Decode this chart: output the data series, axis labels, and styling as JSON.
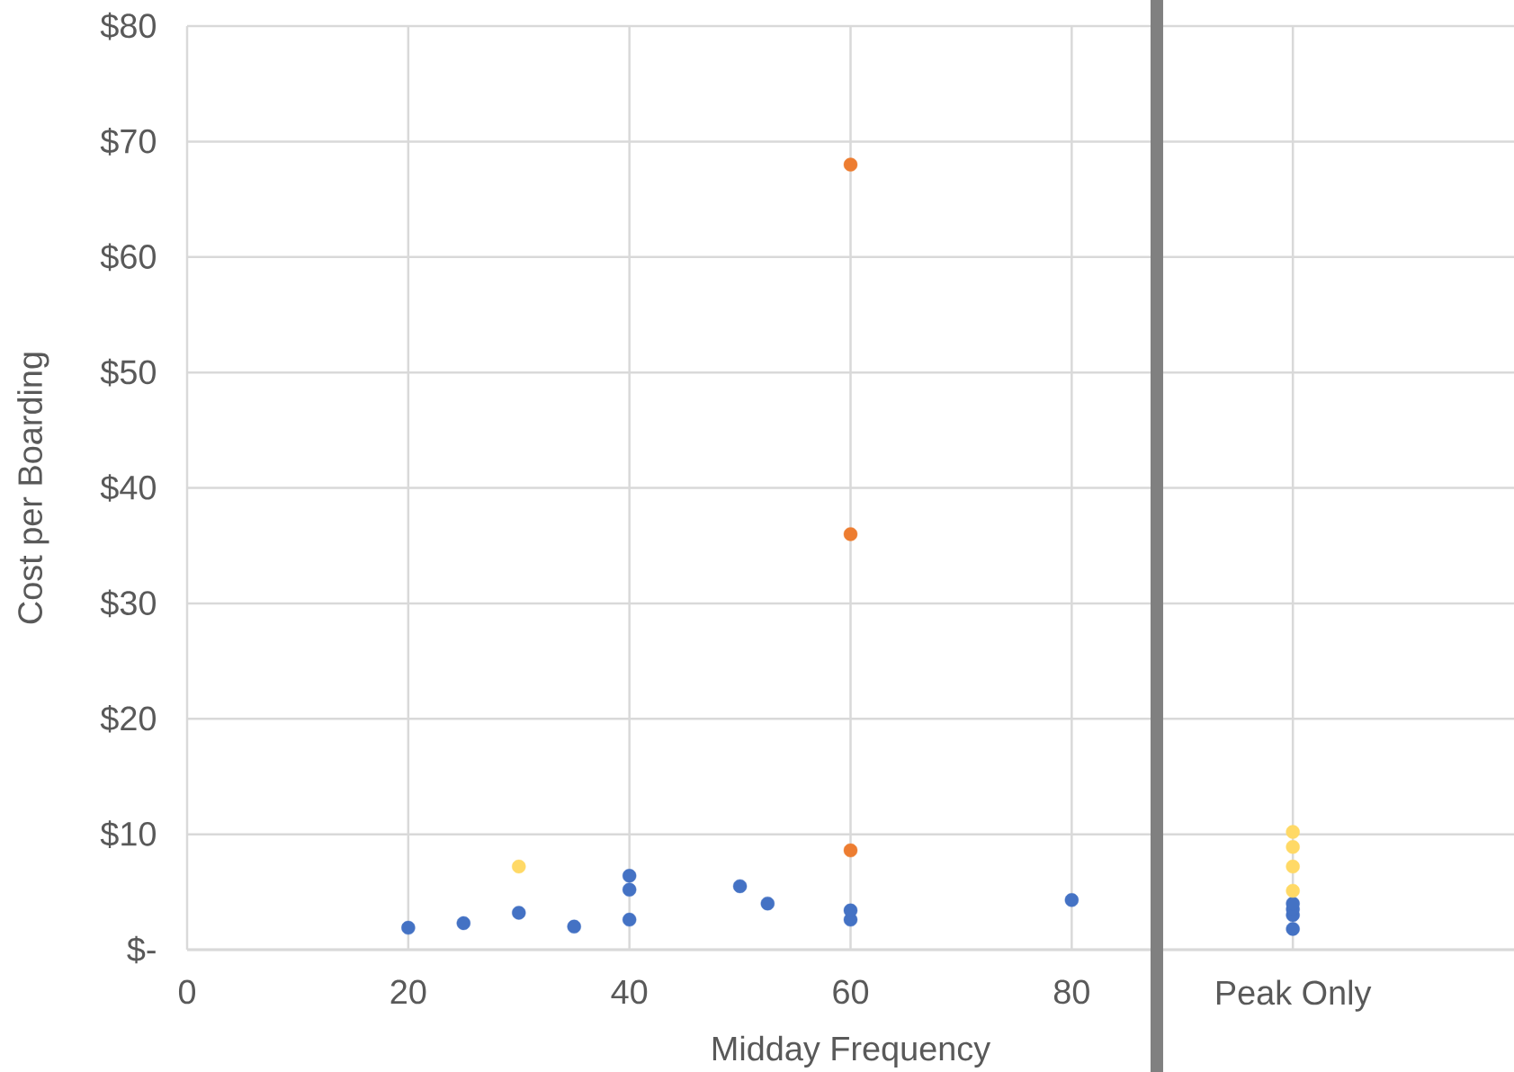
{
  "chart_data": {
    "type": "scatter",
    "xlabel": "Midday Frequency",
    "ylabel": "Cost per Boarding",
    "xlim": [
      0,
      120
    ],
    "ylim": [
      0,
      80
    ],
    "xticks": [
      0,
      20,
      40,
      60,
      80,
      {
        "value": 100,
        "label": "Peak Only"
      }
    ],
    "yticks": [
      {
        "value": 0,
        "label": "$-"
      },
      {
        "value": 10,
        "label": "$10"
      },
      {
        "value": 20,
        "label": "$20"
      },
      {
        "value": 30,
        "label": "$30"
      },
      {
        "value": 40,
        "label": "$40"
      },
      {
        "value": 50,
        "label": "$50"
      },
      {
        "value": 60,
        "label": "$60"
      },
      {
        "value": 70,
        "label": "$70"
      },
      {
        "value": 80,
        "label": "$80"
      }
    ],
    "grid": true,
    "marker": "circle",
    "ref_lines": [
      {
        "axis": "x",
        "value": 87.7,
        "color": "#808080"
      }
    ],
    "series": [
      {
        "color": "#4472c4",
        "x": [
          20,
          25,
          30,
          35,
          40,
          40,
          40,
          50,
          52.5,
          60,
          60,
          80,
          100,
          100,
          100,
          100
        ],
        "values": [
          1.9,
          2.3,
          3.2,
          2.0,
          2.6,
          5.2,
          6.4,
          5.5,
          4.0,
          2.6,
          3.4,
          4.3,
          1.8,
          3.0,
          3.5,
          4.0
        ]
      },
      {
        "color": "#ed7d31",
        "x": [
          60,
          60,
          60
        ],
        "values": [
          68.0,
          36.0,
          8.6
        ]
      },
      {
        "color": "#ffd966",
        "x": [
          30,
          100,
          100,
          100,
          100
        ],
        "values": [
          7.2,
          10.2,
          8.9,
          7.2,
          5.1
        ]
      }
    ]
  }
}
